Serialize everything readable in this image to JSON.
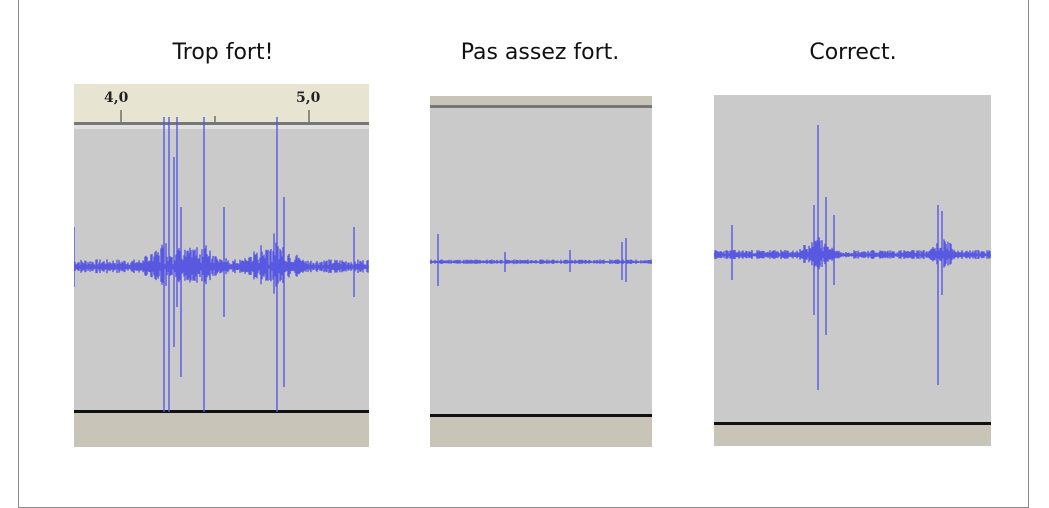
{
  "colors": {
    "waveform": "#5858e0",
    "track_background": "#cacaca",
    "ruler_background": "#e8e4d2",
    "bottom_bar": "#c8c4b8",
    "frame_border": "#8a8a8a"
  },
  "panels": [
    {
      "caption": "Trop fort!",
      "ruler_labels": [
        "4,0",
        "5,0"
      ],
      "amplitude": "clipping"
    },
    {
      "caption": "Pas assez fort.",
      "amplitude": "too-low"
    },
    {
      "caption": "Correct.",
      "amplitude": "correct"
    }
  ]
}
